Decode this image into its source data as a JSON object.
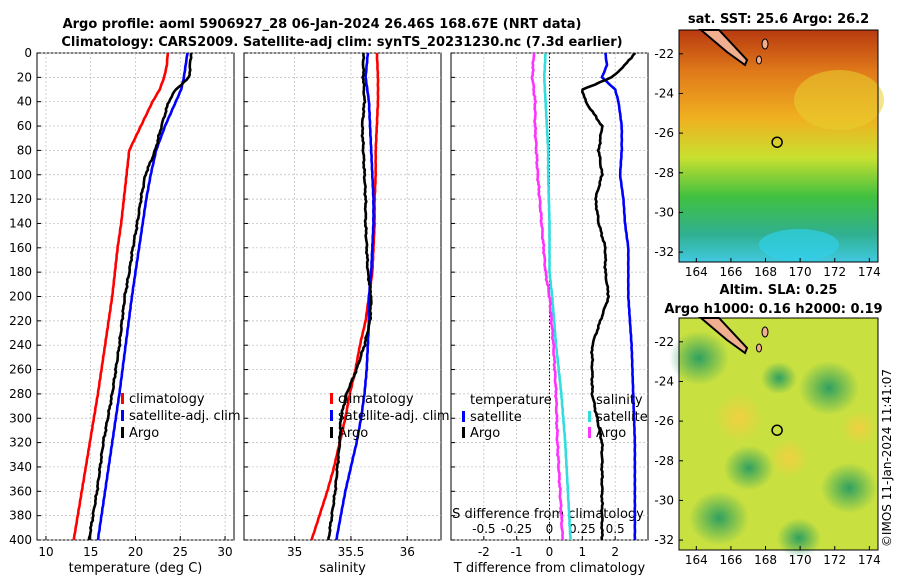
{
  "title": {
    "line1": "Argo profile: aoml 5906927_28 06-Jan-2024 26.46S 168.67E (NRT data)",
    "line2": "Climatology: CARS2009. Satellite-adj clim: synTS_20231230.nc (7.3d earlier)"
  },
  "colors": {
    "climatology": "#ff0000",
    "satellite": "#0000ff",
    "argo": "#000000",
    "temperature_diff": "#33dddd",
    "salinity_diff": "#ff33ff"
  },
  "chart_data": [
    {
      "type": "line",
      "panel": "temperature",
      "xlabel": "temperature (deg C)",
      "ylabel": "",
      "xlim": [
        9,
        31
      ],
      "ylim": [
        400,
        0
      ],
      "xticks": [
        "10",
        "15",
        "20",
        "25",
        "30"
      ],
      "yticks": [
        "0",
        "20",
        "40",
        "60",
        "80",
        "100",
        "120",
        "140",
        "160",
        "180",
        "200",
        "220",
        "240",
        "260",
        "280",
        "300",
        "320",
        "340",
        "360",
        "380",
        "400"
      ],
      "grid": true,
      "legend": [
        "climatology",
        "satellite-adj. clim",
        "Argo"
      ],
      "series": [
        {
          "name": "climatology",
          "depth": [
            0,
            10,
            20,
            30,
            40,
            60,
            80,
            100,
            120,
            140,
            160,
            180,
            200,
            240,
            280,
            320,
            360,
            400
          ],
          "values": [
            23.6,
            23.5,
            23.2,
            22.7,
            21.9,
            20.6,
            19.3,
            19.0,
            18.7,
            18.4,
            18.0,
            17.7,
            17.4,
            16.6,
            15.8,
            14.9,
            14.0,
            13.1
          ]
        },
        {
          "name": "satellite-adj. clim",
          "depth": [
            0,
            10,
            20,
            30,
            40,
            60,
            80,
            100,
            120,
            140,
            160,
            180,
            200,
            240,
            280,
            320,
            360,
            400
          ],
          "values": [
            25.8,
            25.6,
            25.4,
            25.1,
            24.5,
            23.3,
            22.3,
            21.7,
            21.2,
            20.8,
            20.4,
            20.0,
            19.6,
            18.9,
            18.2,
            17.4,
            16.6,
            15.8
          ]
        },
        {
          "name": "Argo",
          "depth": [
            0,
            10,
            20,
            30,
            40,
            60,
            80,
            100,
            120,
            140,
            160,
            180,
            200,
            240,
            280,
            320,
            360,
            400
          ],
          "values": [
            26.2,
            26.1,
            26.0,
            24.5,
            23.7,
            22.9,
            22.2,
            21.1,
            20.6,
            20.2,
            19.7,
            19.3,
            18.8,
            18.2,
            17.4,
            16.4,
            15.7,
            14.8
          ]
        }
      ]
    },
    {
      "type": "line",
      "panel": "salinity",
      "xlabel": "salinity",
      "xlim": [
        34.55,
        36.3
      ],
      "ylim": [
        400,
        0
      ],
      "xticks": [
        "35",
        "35.5",
        "36"
      ],
      "grid": true,
      "legend": [
        "climatology",
        "satellite-adj. clim",
        "Argo"
      ],
      "series": [
        {
          "name": "climatology",
          "depth": [
            0,
            20,
            40,
            60,
            80,
            100,
            120,
            140,
            160,
            180,
            200,
            220,
            240,
            260,
            280,
            300,
            320,
            340,
            360,
            380,
            400
          ],
          "values": [
            35.73,
            35.74,
            35.74,
            35.73,
            35.72,
            35.72,
            35.71,
            35.71,
            35.7,
            35.69,
            35.66,
            35.63,
            35.58,
            35.54,
            35.49,
            35.45,
            35.4,
            35.35,
            35.29,
            35.22,
            35.15
          ]
        },
        {
          "name": "satellite-adj. clim",
          "depth": [
            0,
            20,
            40,
            60,
            80,
            100,
            120,
            140,
            160,
            180,
            200,
            220,
            240,
            260,
            280,
            300,
            320,
            340,
            360,
            380,
            400
          ],
          "values": [
            35.65,
            35.63,
            35.66,
            35.67,
            35.68,
            35.69,
            35.7,
            35.7,
            35.69,
            35.68,
            35.66,
            35.66,
            35.65,
            35.64,
            35.62,
            35.59,
            35.55,
            35.5,
            35.45,
            35.41,
            35.37
          ]
        },
        {
          "name": "Argo",
          "depth": [
            0,
            20,
            40,
            60,
            80,
            100,
            120,
            140,
            160,
            180,
            200,
            220,
            240,
            260,
            280,
            300,
            320,
            340,
            360,
            380,
            400
          ],
          "values": [
            35.61,
            35.61,
            35.62,
            35.6,
            35.61,
            35.62,
            35.63,
            35.63,
            35.64,
            35.65,
            35.68,
            35.67,
            35.62,
            35.55,
            35.46,
            35.41,
            35.4,
            35.38,
            35.36,
            35.33,
            35.3
          ]
        }
      ]
    },
    {
      "type": "line",
      "panel": "difference",
      "xlabel": "T difference from climatology",
      "top_xlabel": "S difference from climatology",
      "xlim": [
        -3,
        3
      ],
      "ylim": [
        400,
        0
      ],
      "xticks": [
        "-2",
        "-1",
        "0",
        "1",
        "2"
      ],
      "top_xticks": [
        "-0.5",
        "-0.25",
        "0",
        "0.25",
        "0.5"
      ],
      "top_xlim": [
        -0.75,
        0.75
      ],
      "grid": true,
      "legend_temperature": {
        "title": "temperature",
        "items": [
          "satellite",
          "Argo"
        ]
      },
      "legend_salinity": {
        "title": "salinity",
        "items": [
          "satellite",
          "Argo"
        ]
      },
      "series": [
        {
          "name": "temperature satellite",
          "depth": [
            0,
            10,
            20,
            30,
            40,
            60,
            80,
            100,
            120,
            140,
            160,
            180,
            200,
            240,
            280,
            320,
            360,
            400
          ],
          "values": [
            1.7,
            1.75,
            1.6,
            2.0,
            2.1,
            2.2,
            2.2,
            2.15,
            2.25,
            2.3,
            2.4,
            2.4,
            2.4,
            2.5,
            2.55,
            2.6,
            2.6,
            2.6
          ]
        },
        {
          "name": "temperature Argo",
          "depth": [
            0,
            10,
            20,
            30,
            40,
            60,
            80,
            100,
            120,
            140,
            160,
            180,
            200,
            240,
            280,
            320,
            360,
            400
          ],
          "values": [
            2.6,
            2.3,
            1.9,
            1.0,
            1.1,
            1.6,
            1.5,
            1.6,
            1.4,
            1.5,
            1.7,
            1.7,
            1.8,
            1.3,
            1.3,
            1.6,
            1.6,
            1.6
          ]
        },
        {
          "name": "salinity satellite",
          "depth": [
            0,
            20,
            40,
            60,
            80,
            100,
            140,
            180,
            200,
            240,
            280,
            320,
            360,
            400
          ],
          "values": [
            -0.03,
            -0.04,
            -0.03,
            -0.02,
            -0.01,
            -0.01,
            0.0,
            0.0,
            0.02,
            0.05,
            0.09,
            0.12,
            0.14,
            0.16
          ]
        },
        {
          "name": "salinity Argo",
          "depth": [
            0,
            20,
            40,
            60,
            80,
            100,
            140,
            180,
            200,
            240,
            280,
            320,
            360,
            400
          ],
          "values": [
            -0.12,
            -0.13,
            -0.11,
            -0.11,
            -0.1,
            -0.09,
            -0.06,
            -0.03,
            0.0,
            0.03,
            0.05,
            0.06,
            0.08,
            0.1
          ]
        }
      ]
    },
    {
      "type": "heatmap",
      "panel": "sst-map",
      "title": "sat. SST: 25.6 Argo: 26.2",
      "xticks": [
        "164",
        "166",
        "168",
        "170",
        "172",
        "174"
      ],
      "yticks": [
        "-22",
        "-24",
        "-26",
        "-28",
        "-30",
        "-32"
      ],
      "xlim": [
        163,
        174.5
      ],
      "ylim": [
        -32.5,
        -20.8
      ],
      "marker": {
        "lon": 168.67,
        "lat": -26.46
      }
    },
    {
      "type": "heatmap",
      "panel": "sla-map",
      "title_line1": "Altim. SLA: 0.25",
      "title_line2": "Argo h1000: 0.16 h2000: 0.19",
      "xticks": [
        "164",
        "166",
        "168",
        "170",
        "172",
        "174"
      ],
      "yticks": [
        "-22",
        "-24",
        "-26",
        "-28",
        "-30",
        "-32"
      ],
      "xlim": [
        163,
        174.5
      ],
      "ylim": [
        -32.5,
        -20.8
      ],
      "marker": {
        "lon": 168.67,
        "lat": -26.46
      }
    }
  ],
  "watermark": "©IMOS 11-Jan-2024 11:41:07"
}
